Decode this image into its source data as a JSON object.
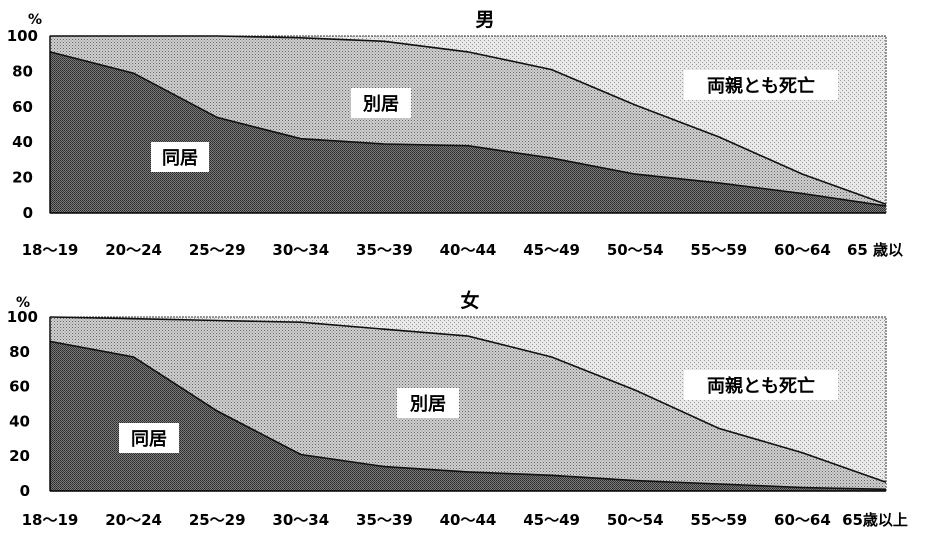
{
  "chart_data": [
    {
      "type": "area",
      "title": "男",
      "unit": "%",
      "categories": [
        "18〜19",
        "20〜24",
        "25〜29",
        "30〜34",
        "35〜39",
        "40〜44",
        "45〜49",
        "50〜54",
        "55〜59",
        "60〜64",
        "65 歳以"
      ],
      "yticks": [
        "0",
        "20",
        "40",
        "60",
        "80",
        "100"
      ],
      "ylim": [
        0,
        100
      ],
      "stack_lines": {
        "同居": [
          91,
          79,
          54,
          42,
          39,
          38,
          31,
          22,
          17,
          11,
          4
        ],
        "別居": [
          100,
          100,
          100,
          99,
          97,
          91,
          81,
          61,
          43,
          22,
          5
        ]
      },
      "region_labels": {
        "cohabiting": "同居",
        "separate": "別居",
        "both_deceased": "両親とも死亡"
      },
      "colors": {
        "cohabiting": "#5a5a5a",
        "separate": "#c4c4c4",
        "background": "#ececec",
        "line": "#111111"
      }
    },
    {
      "type": "area",
      "title": "女",
      "unit": "%",
      "categories": [
        "18〜19",
        "20〜24",
        "25〜29",
        "30〜34",
        "35〜39",
        "40〜44",
        "45〜49",
        "50〜54",
        "55〜59",
        "60〜64",
        "65歳以上"
      ],
      "yticks": [
        "0",
        "20",
        "40",
        "60",
        "80",
        "100"
      ],
      "ylim": [
        0,
        100
      ],
      "stack_lines": {
        "同居": [
          86,
          77,
          46,
          21,
          14,
          11,
          9,
          6,
          4,
          2,
          1
        ],
        "別居": [
          100,
          99,
          98,
          97,
          93,
          89,
          77,
          58,
          36,
          22,
          5
        ]
      },
      "region_labels": {
        "cohabiting": "同居",
        "separate": "別居",
        "both_deceased": "両親とも死亡"
      },
      "colors": {
        "cohabiting": "#5a5a5a",
        "separate": "#c4c4c4",
        "background": "#ececec",
        "line": "#111111"
      }
    }
  ]
}
